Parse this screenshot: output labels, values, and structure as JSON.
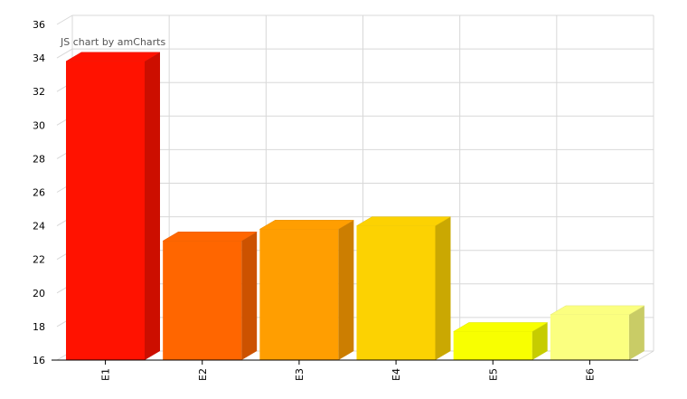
{
  "credit": "JS chart by amCharts",
  "chart_data": {
    "type": "bar",
    "three_d": true,
    "categories": [
      "E1",
      "E2",
      "E3",
      "E4",
      "E5",
      "E6"
    ],
    "values": [
      33.8,
      23.1,
      23.8,
      24.0,
      17.7,
      18.7
    ],
    "colors": [
      "#FF1200",
      "#FF6600",
      "#FF9E01",
      "#FCD202",
      "#F8FF01",
      "#FBFF80"
    ],
    "ylim": [
      16,
      36
    ],
    "yticks": [
      16,
      18,
      20,
      22,
      24,
      26,
      28,
      30,
      32,
      34,
      36
    ],
    "grid": true,
    "title": "",
    "xlabel": "",
    "ylabel": ""
  }
}
